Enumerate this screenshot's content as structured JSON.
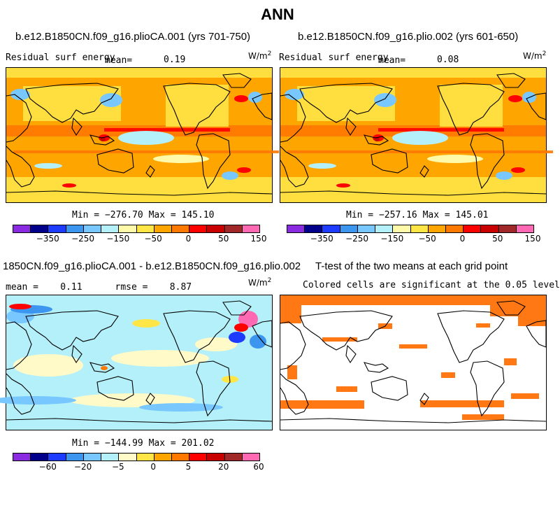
{
  "page_title": "ANN",
  "panels": {
    "top_left": {
      "case": "b.e12.B1850CN.f09_g16.plioCA.001 (yrs 701-750)",
      "variable": "Residual surf energy",
      "mean_label": "mean=",
      "mean_value": "0.19",
      "unit": "W/m",
      "unit_exp": "2",
      "minmax": "Min = −276.70 Max = 145.10"
    },
    "top_right": {
      "case": "b.e12.B1850CN.f09_g16.plio.002 (yrs 601-650)",
      "variable": "Residual surf energy",
      "mean_label": "mean=",
      "mean_value": "0.08",
      "unit": "W/m",
      "unit_exp": "2",
      "minmax": "Min = −257.16 Max = 145.01"
    },
    "bottom_left": {
      "case": "1850CN.f09_g16.plioCA.001 - b.e12.B1850CN.f09_g16.plio.002",
      "stats": "mean =    0.11      rmse =    8.87",
      "unit": "W/m",
      "unit_exp": "2",
      "minmax": "Min = −144.99 Max = 201.02"
    },
    "bottom_right": {
      "title": "T-test of the two means at each grid point",
      "subtitle": "Colored cells are significant at the 0.05 level"
    }
  },
  "chart_data": [
    {
      "type": "heatmap",
      "title": "b.e12.B1850CN.f09_g16.plioCA.001 (yrs 701-750)",
      "variable": "Residual surf energy",
      "mean": 0.19,
      "min": -276.7,
      "max": 145.1,
      "unit": "W/m2",
      "colorbar_ticks": [
        "−350",
        "−250",
        "−150",
        "−50",
        "0",
        "50",
        "150"
      ],
      "colorbar_colors": [
        "#8a2be2",
        "#00008b",
        "#1e3cff",
        "#3c96f0",
        "#78c8ff",
        "#b4f0fa",
        "#fffaaa",
        "#ffe646",
        "#ffa500",
        "#ff7800",
        "#ff0000",
        "#c80000",
        "#a02828",
        "#ff69b4"
      ]
    },
    {
      "type": "heatmap",
      "title": "b.e12.B1850CN.f09_g16.plio.002 (yrs 601-650)",
      "variable": "Residual surf energy",
      "mean": 0.08,
      "min": -257.16,
      "max": 145.01,
      "unit": "W/m2",
      "colorbar_ticks": [
        "−350",
        "−250",
        "−150",
        "−50",
        "0",
        "50",
        "150"
      ],
      "colorbar_colors": [
        "#8a2be2",
        "#00008b",
        "#1e3cff",
        "#3c96f0",
        "#78c8ff",
        "#b4f0fa",
        "#fffaaa",
        "#ffe646",
        "#ffa500",
        "#ff7800",
        "#ff0000",
        "#c80000",
        "#a02828",
        "#ff69b4"
      ]
    },
    {
      "type": "heatmap",
      "title": "1850CN.f09_g16.plioCA.001 - b.e12.B1850CN.f09_g16.plio.002",
      "mean": 0.11,
      "rmse": 8.87,
      "min": -144.99,
      "max": 201.02,
      "unit": "W/m2",
      "colorbar_ticks": [
        "−60",
        "−20",
        "−5",
        "0",
        "5",
        "20",
        "60"
      ],
      "colorbar_colors": [
        "#8a2be2",
        "#00008b",
        "#1e3cff",
        "#3c96f0",
        "#78c8ff",
        "#b4f0fa",
        "#fffac8",
        "#ffe646",
        "#ffa500",
        "#ff7800",
        "#ff0000",
        "#c80000",
        "#a02828",
        "#ff69b4"
      ]
    },
    {
      "type": "heatmap",
      "title": "T-test of the two means at each grid point",
      "subtitle": "Colored cells are significant at the 0.05 level",
      "significance_level": 0.05,
      "significant_color": "#ff7814"
    }
  ]
}
